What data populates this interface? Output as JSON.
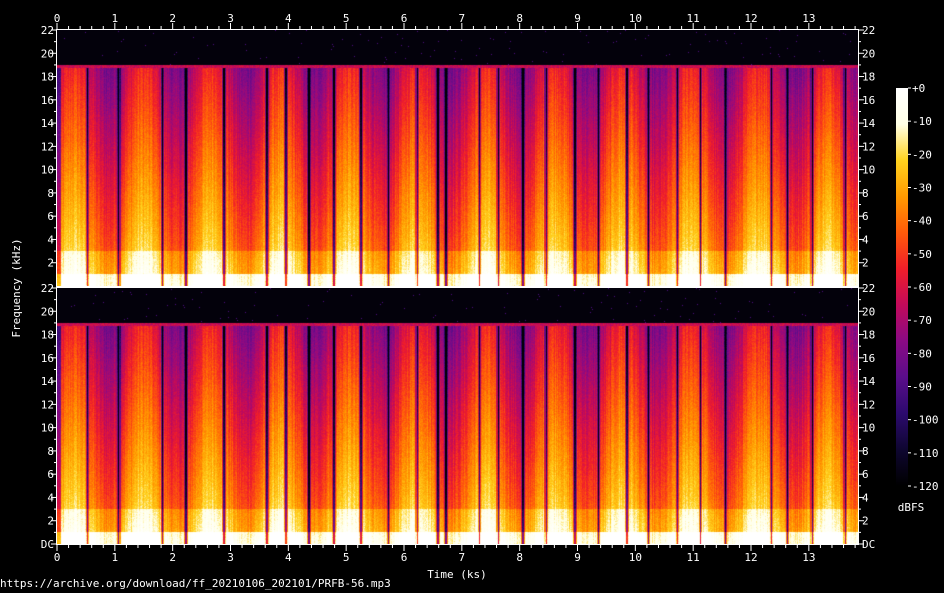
{
  "chart_data": {
    "type": "heatmap",
    "xlabel": "Time (ks)",
    "ylabel": "Frequency (kHz)",
    "x_ticks": [
      "0",
      "1",
      "2",
      "3",
      "4",
      "5",
      "6",
      "7",
      "8",
      "9",
      "10",
      "11",
      "12",
      "13"
    ],
    "xlim": [
      0,
      13.85
    ],
    "channels": [
      {
        "ylim": [
          0,
          22
        ],
        "y_ticks": [
          "2",
          "4",
          "6",
          "8",
          "10",
          "12",
          "14",
          "16",
          "18",
          "20",
          "22"
        ]
      },
      {
        "ylim": [
          0,
          22
        ],
        "y_ticks": [
          "DC",
          "2",
          "4",
          "6",
          "8",
          "10",
          "12",
          "14",
          "16",
          "18",
          "20",
          "22"
        ]
      }
    ],
    "colorbar": {
      "label": "dBFS",
      "range": [
        -120,
        0
      ],
      "ticks": [
        "+0",
        "-10",
        "-20",
        "-30",
        "-40",
        "-50",
        "-60",
        "-70",
        "-80",
        "-90",
        "-100",
        "-110",
        "-120"
      ],
      "colormap": [
        "#000000",
        "#0e0630",
        "#2c0a6e",
        "#5a0d8a",
        "#8a0a84",
        "#c20a5a",
        "#f01e2a",
        "#ff5a0a",
        "#ff9a00",
        "#ffd21e",
        "#ffffe6",
        "#ffffff"
      ]
    },
    "spectral_cutoff_khz": 19,
    "silence_gaps_ks": [
      0.52,
      1.06,
      1.82,
      2.22,
      2.88,
      3.62,
      3.95,
      4.35,
      4.78,
      5.25,
      5.72,
      6.22,
      6.58,
      6.72,
      7.3,
      7.62,
      8.05,
      8.45,
      8.95,
      9.35,
      9.85,
      10.22,
      10.72,
      11.12,
      11.55,
      12.35,
      12.62,
      13.05,
      13.62
    ],
    "source_url": "https://archive.org/download/ff_20210106_202101/PRFB-56.mp3"
  }
}
